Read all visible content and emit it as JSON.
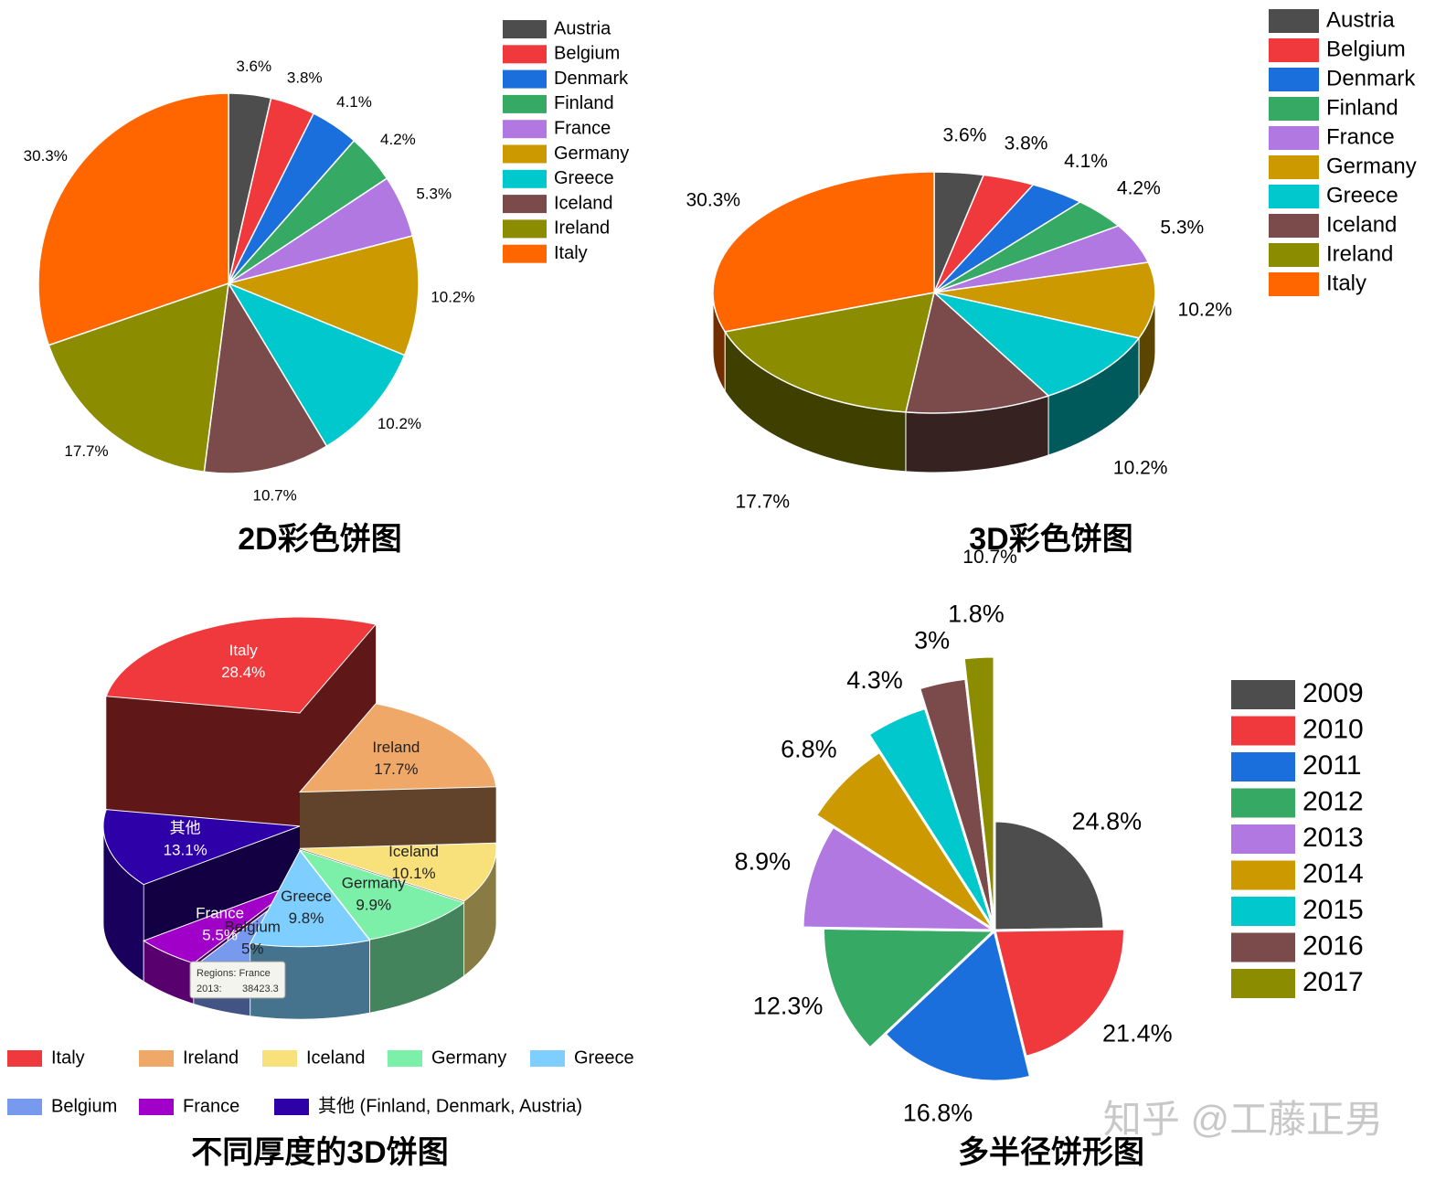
{
  "chart_data": [
    {
      "type": "pie",
      "title": "2D彩色饼图",
      "categories": [
        "Austria",
        "Belgium",
        "Denmark",
        "Finland",
        "France",
        "Germany",
        "Greece",
        "Iceland",
        "Ireland",
        "Italy"
      ],
      "values": [
        3.6,
        3.8,
        4.1,
        4.2,
        5.3,
        10.2,
        10.2,
        10.7,
        17.7,
        30.3
      ],
      "value_labels": [
        "3.6%",
        "3.8%",
        "4.1%",
        "4.2%",
        "5.3%",
        "10.2%",
        "10.2%",
        "10.7%",
        "17.7%",
        "30.3%"
      ],
      "colors": [
        "#4d4d4d",
        "#f0393c",
        "#1a6fdc",
        "#36a965",
        "#b078e0",
        "#cc9900",
        "#00c8cc",
        "#7b4b4b",
        "#8c8c00",
        "#ff6600"
      ],
      "legend": "right"
    },
    {
      "type": "pie3d",
      "title": "3D彩色饼图",
      "categories": [
        "Austria",
        "Belgium",
        "Denmark",
        "Finland",
        "France",
        "Germany",
        "Greece",
        "Iceland",
        "Ireland",
        "Italy"
      ],
      "values": [
        3.6,
        3.8,
        4.1,
        4.2,
        5.3,
        10.2,
        10.2,
        10.7,
        17.7,
        30.3
      ],
      "value_labels": [
        "3.6%",
        "3.8%",
        "4.1%",
        "4.2%",
        "5.3%",
        "10.2%",
        "10.2%",
        "10.7%",
        "17.7%",
        "30.3%"
      ],
      "colors": [
        "#4d4d4d",
        "#f0393c",
        "#1a6fdc",
        "#36a965",
        "#b078e0",
        "#cc9900",
        "#00c8cc",
        "#7b4b4b",
        "#8c8c00",
        "#ff6600"
      ],
      "legend": "right"
    },
    {
      "type": "pie3d-height",
      "title": "不同厚度的3D饼图",
      "categories": [
        "Italy",
        "Ireland",
        "Iceland",
        "Germany",
        "Greece",
        "Belgium",
        "France",
        "其他 (Finland, Denmark, Austria)"
      ],
      "slice_names": [
        "Italy",
        "Ireland",
        "Iceland",
        "Germany",
        "Greece",
        "Belgium",
        "France",
        "其他"
      ],
      "values": [
        28.4,
        17.7,
        10.1,
        9.9,
        9.8,
        5,
        5.5,
        13.1
      ],
      "value_labels": [
        "28.4%",
        "17.7%",
        "10.1%",
        "9.9%",
        "9.8%",
        "5%",
        "5.5%",
        "13.1%"
      ],
      "colors": [
        "#f0393c",
        "#f0a868",
        "#f8e07a",
        "#7cf0a8",
        "#7ecfff",
        "#7799ee",
        "#a000c8",
        "#2d00a8"
      ],
      "legend": "bottom",
      "tooltip": {
        "title": "Regions: France",
        "key": "2013:",
        "value": 38423.3
      }
    },
    {
      "type": "pie-radius",
      "title": "多半径饼形图",
      "categories": [
        "2009",
        "2010",
        "2011",
        "2012",
        "2013",
        "2014",
        "2015",
        "2016",
        "2017"
      ],
      "values": [
        24.8,
        21.4,
        16.8,
        12.3,
        8.9,
        6.8,
        4.3,
        3,
        1.8
      ],
      "value_labels": [
        "24.8%",
        "21.4%",
        "16.8%",
        "12.3%",
        "8.9%",
        "6.8%",
        "4.3%",
        "3%",
        "1.8%"
      ],
      "colors": [
        "#4d4d4d",
        "#f0393c",
        "#1a6fdc",
        "#36a965",
        "#b078e0",
        "#cc9900",
        "#00c8cc",
        "#7b4b4b",
        "#8c8c00"
      ],
      "legend": "right"
    }
  ],
  "watermark": "知乎 @工藤正男"
}
